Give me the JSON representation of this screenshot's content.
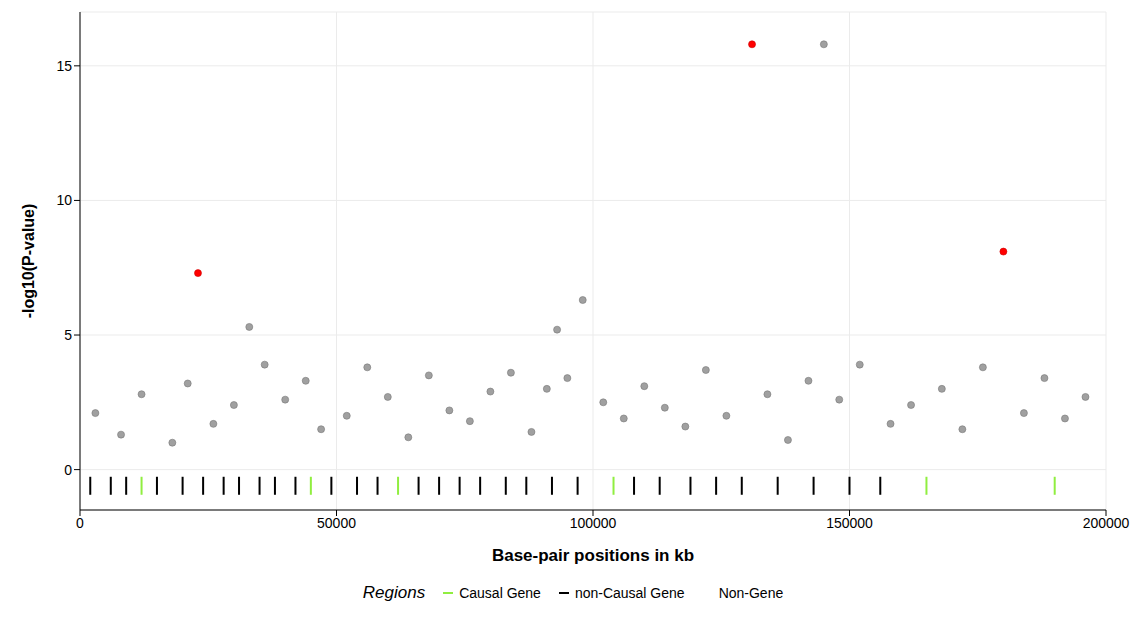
{
  "chart_data": {
    "type": "scatter",
    "x_label": "Base-pair positions in kb",
    "y_label": "-log10(P-value)",
    "legend_title": "Regions",
    "grid": true,
    "legend": "bottom",
    "xlim": [
      0,
      200000
    ],
    "xticks": [
      0,
      50000,
      100000,
      150000,
      200000
    ],
    "ylim": [
      -1.5,
      17
    ],
    "yticks": [
      0,
      5,
      10,
      15
    ],
    "x": [
      3000,
      8000,
      12000,
      18000,
      21000,
      26000,
      30000,
      33000,
      36000,
      40000,
      44000,
      47000,
      52000,
      56000,
      60000,
      64000,
      68000,
      72000,
      76000,
      80000,
      84000,
      88000,
      91000,
      93000,
      95000,
      98000,
      102000,
      106000,
      110000,
      114000,
      118000,
      122000,
      126000,
      134000,
      138000,
      142000,
      148000,
      152000,
      158000,
      162000,
      168000,
      172000,
      176000,
      184000,
      188000,
      192000,
      196000,
      23000,
      131000,
      145000,
      180000
    ],
    "values": [
      2.1,
      1.3,
      2.8,
      1.0,
      3.2,
      1.7,
      2.4,
      5.3,
      3.9,
      2.6,
      3.3,
      1.5,
      2.0,
      3.8,
      2.7,
      1.2,
      3.5,
      2.2,
      1.8,
      2.9,
      3.6,
      1.4,
      3.0,
      5.2,
      3.4,
      6.3,
      2.5,
      1.9,
      3.1,
      2.3,
      1.6,
      3.7,
      2.0,
      2.8,
      1.1,
      3.3,
      2.6,
      3.9,
      1.7,
      2.4,
      3.0,
      1.5,
      3.8,
      2.1,
      3.4,
      1.9,
      2.7,
      7.3,
      15.8,
      15.8,
      8.1
    ],
    "colors": [
      "#a0a0a0",
      "#a0a0a0",
      "#a0a0a0",
      "#a0a0a0",
      "#a0a0a0",
      "#a0a0a0",
      "#a0a0a0",
      "#a0a0a0",
      "#a0a0a0",
      "#a0a0a0",
      "#a0a0a0",
      "#a0a0a0",
      "#a0a0a0",
      "#a0a0a0",
      "#a0a0a0",
      "#a0a0a0",
      "#a0a0a0",
      "#a0a0a0",
      "#a0a0a0",
      "#a0a0a0",
      "#a0a0a0",
      "#a0a0a0",
      "#a0a0a0",
      "#a0a0a0",
      "#a0a0a0",
      "#a0a0a0",
      "#a0a0a0",
      "#a0a0a0",
      "#a0a0a0",
      "#a0a0a0",
      "#a0a0a0",
      "#a0a0a0",
      "#a0a0a0",
      "#a0a0a0",
      "#a0a0a0",
      "#a0a0a0",
      "#a0a0a0",
      "#a0a0a0",
      "#a0a0a0",
      "#a0a0a0",
      "#a0a0a0",
      "#a0a0a0",
      "#a0a0a0",
      "#a0a0a0",
      "#a0a0a0",
      "#a0a0a0",
      "#a0a0a0",
      "#ff0000",
      "#ff0000",
      "#a0a0a0",
      "#ff0000"
    ],
    "series": [
      {
        "name": "Causal Gene",
        "color": "#90ee40",
        "marker": "line",
        "x": [
          12000,
          45000,
          62000,
          104000,
          165000,
          190000
        ],
        "values": [
          -0.6,
          -0.6,
          -0.6,
          -0.6,
          -0.6,
          -0.6
        ]
      },
      {
        "name": "non-Causal Gene",
        "color": "#000000",
        "marker": "line",
        "x": [
          2000,
          6000,
          9000,
          15000,
          20000,
          24000,
          28000,
          31000,
          35000,
          38000,
          42000,
          49000,
          54000,
          58000,
          66000,
          70000,
          74000,
          78000,
          83000,
          87000,
          92000,
          97000,
          108000,
          113000,
          119000,
          124000,
          129000,
          136000,
          143000,
          150000,
          156000
        ],
        "values": [
          -0.6,
          -0.6,
          -0.6,
          -0.6,
          -0.6,
          -0.6,
          -0.6,
          -0.6,
          -0.6,
          -0.6,
          -0.6,
          -0.6,
          -0.6,
          -0.6,
          -0.6,
          -0.6,
          -0.6,
          -0.6,
          -0.6,
          -0.6,
          -0.6,
          -0.6,
          -0.6,
          -0.6,
          -0.6,
          -0.6,
          -0.6,
          -0.6,
          -0.6,
          -0.6,
          -0.6
        ]
      },
      {
        "name": "Non-Gene",
        "color": "#ffffff",
        "marker": "line",
        "x": [],
        "values": []
      }
    ]
  }
}
